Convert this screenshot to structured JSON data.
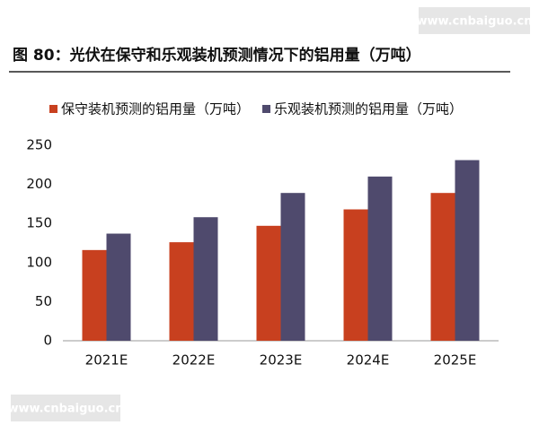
{
  "watermarks": [
    "www.cnbaiguo.cn",
    "www.cnbaiguo.cn"
  ],
  "chart_data": {
    "type": "bar",
    "title": "图 80：光伏在保守和乐观装机预测情况下的铝用量（万吨）",
    "categories": [
      "2021E",
      "2022E",
      "2023E",
      "2024E",
      "2025E"
    ],
    "series": [
      {
        "name": "保守装机预测的铝用量（万吨）",
        "color": "#c8401f",
        "values": [
          116,
          126,
          147,
          168,
          189
        ]
      },
      {
        "name": "乐观装机预测的铝用量（万吨）",
        "color": "#4f4a6d",
        "values": [
          137,
          158,
          189,
          210,
          231
        ]
      }
    ],
    "ylim": [
      0,
      250
    ],
    "yticks": [
      0,
      50,
      100,
      150,
      200,
      250
    ],
    "grid": false
  }
}
